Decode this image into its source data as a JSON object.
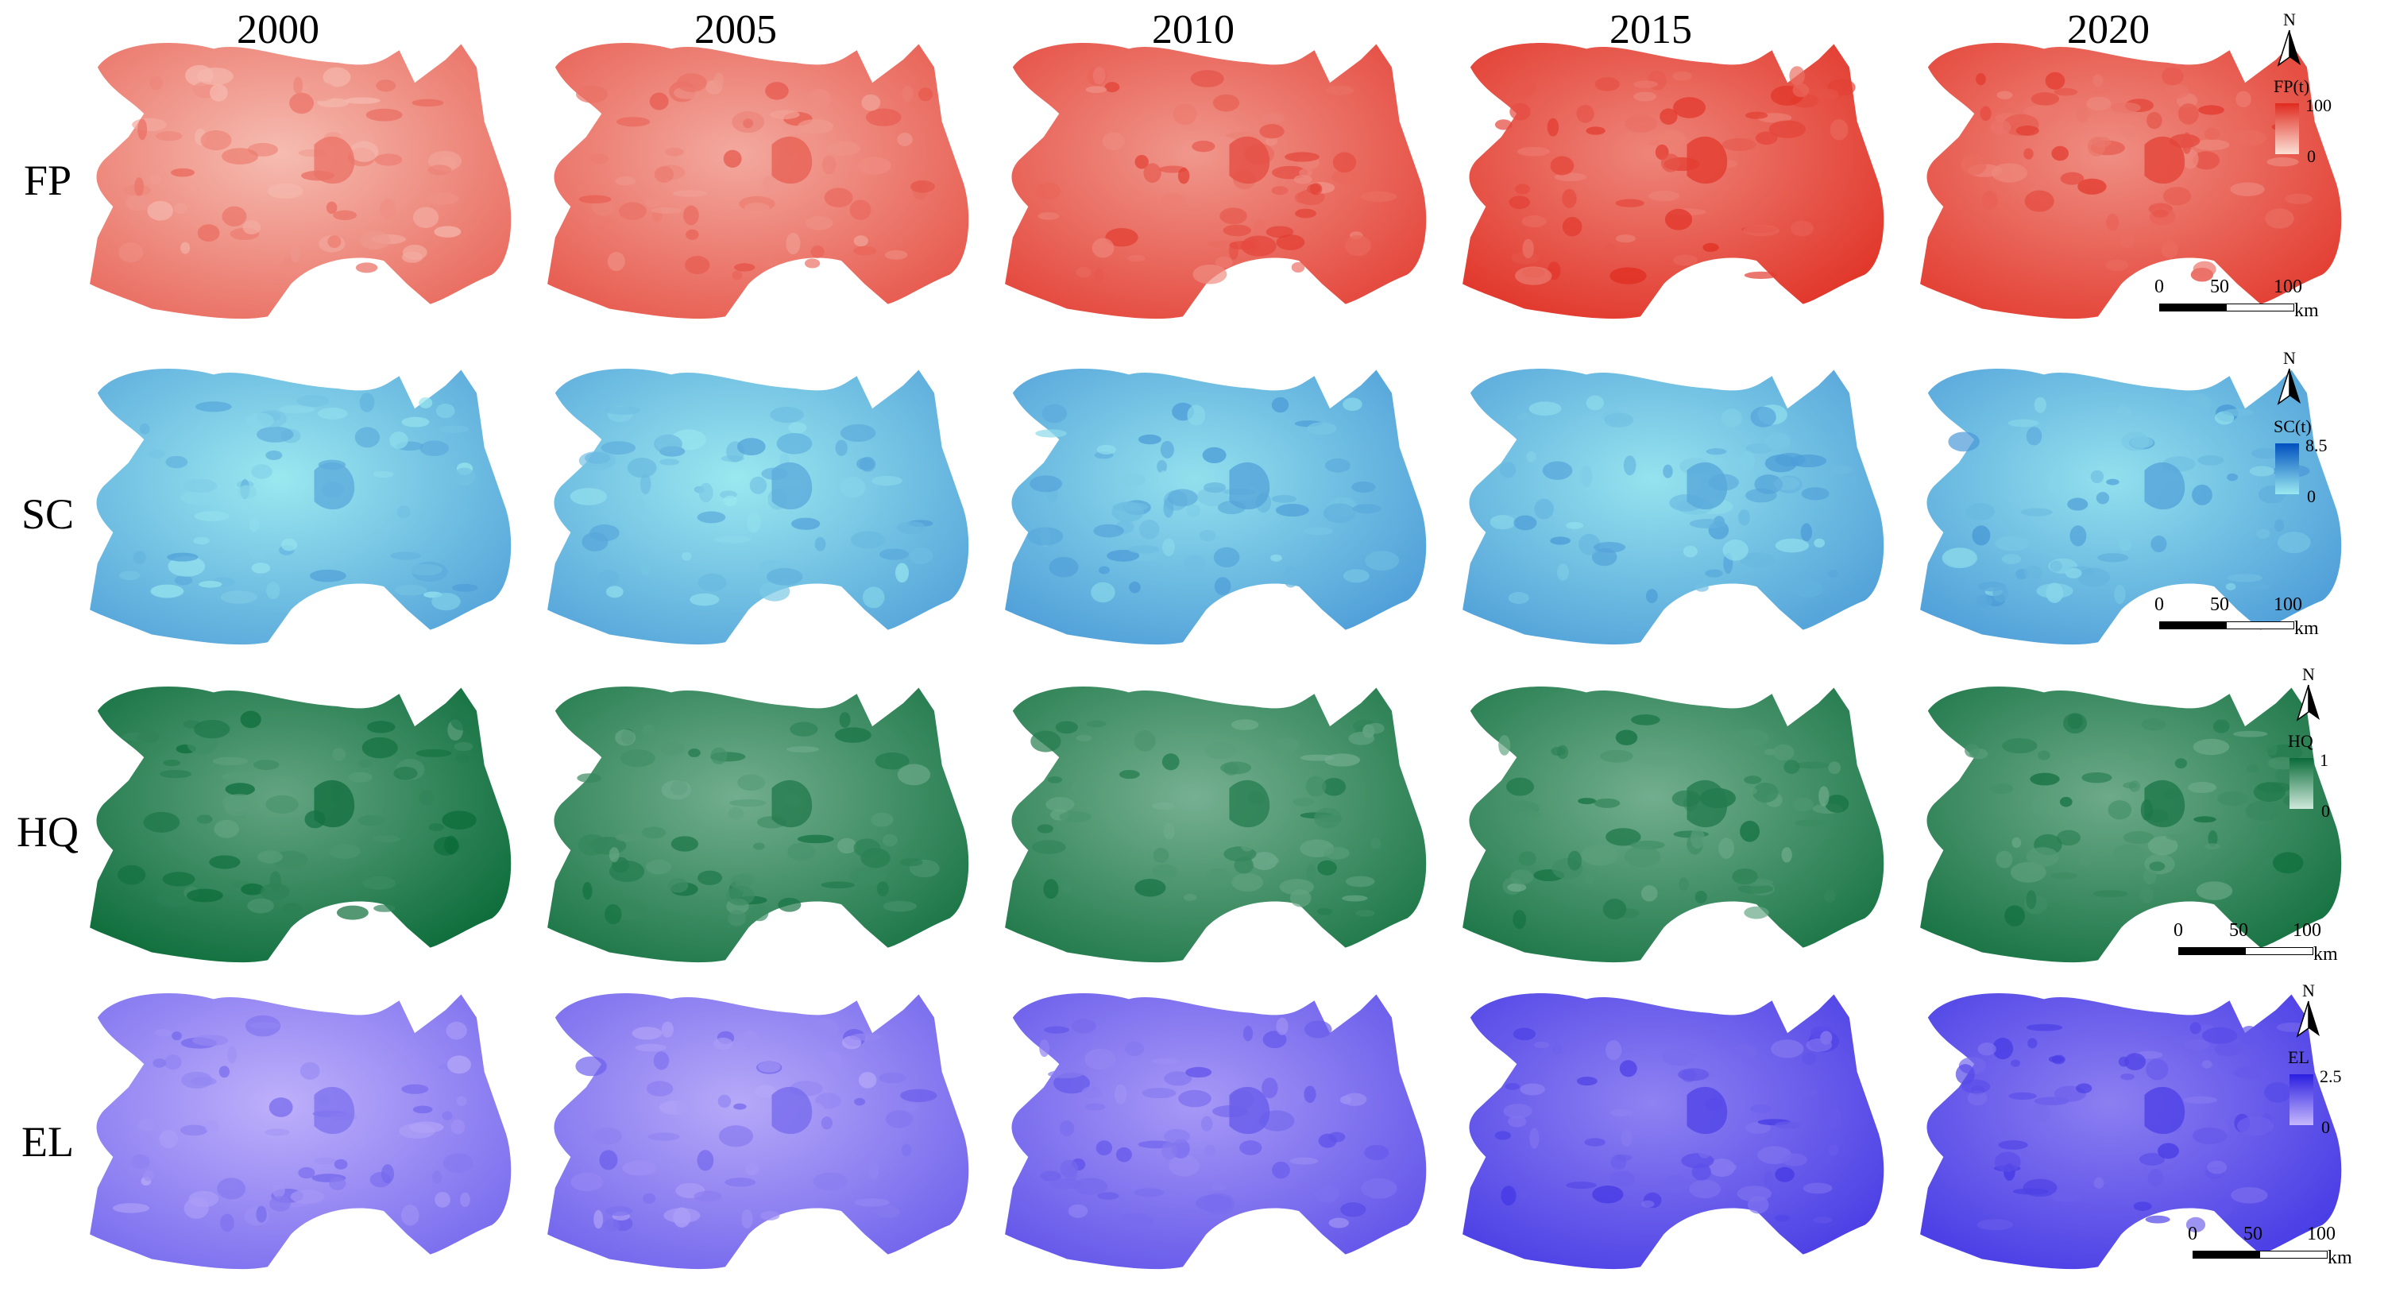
{
  "years": [
    "2000",
    "2005",
    "2010",
    "2015",
    "2020"
  ],
  "rows": [
    {
      "label": "FP",
      "legend_title": "FP(t)",
      "legend_max": "100",
      "legend_min": "0",
      "color_low": "#fbe0d6",
      "color_high": "#e02a1e",
      "levels": [
        0.45,
        0.55,
        0.65,
        0.75,
        0.7
      ]
    },
    {
      "label": "SC",
      "legend_title": "SC(t)",
      "legend_max": "8.5",
      "legend_min": "0",
      "color_low": "#9ae8ef",
      "color_high": "#0050c0",
      "levels": [
        0.25,
        0.25,
        0.3,
        0.28,
        0.3
      ]
    },
    {
      "label": "HQ",
      "legend_title": "HQ",
      "legend_max": "1",
      "legend_min": "0",
      "color_low": "#cfe9dc",
      "color_high": "#0a6b38",
      "levels": [
        0.8,
        0.72,
        0.7,
        0.72,
        0.75
      ]
    },
    {
      "label": "EL",
      "legend_title": "EL",
      "legend_max": "2.5",
      "legend_min": "0",
      "color_low": "#c6b8fb",
      "color_high": "#2a1ee0",
      "levels": [
        0.3,
        0.35,
        0.45,
        0.6,
        0.62
      ]
    }
  ],
  "north_label": "N",
  "scale_bar": {
    "ticks": [
      "0",
      "50",
      "100"
    ],
    "unit": "km"
  }
}
